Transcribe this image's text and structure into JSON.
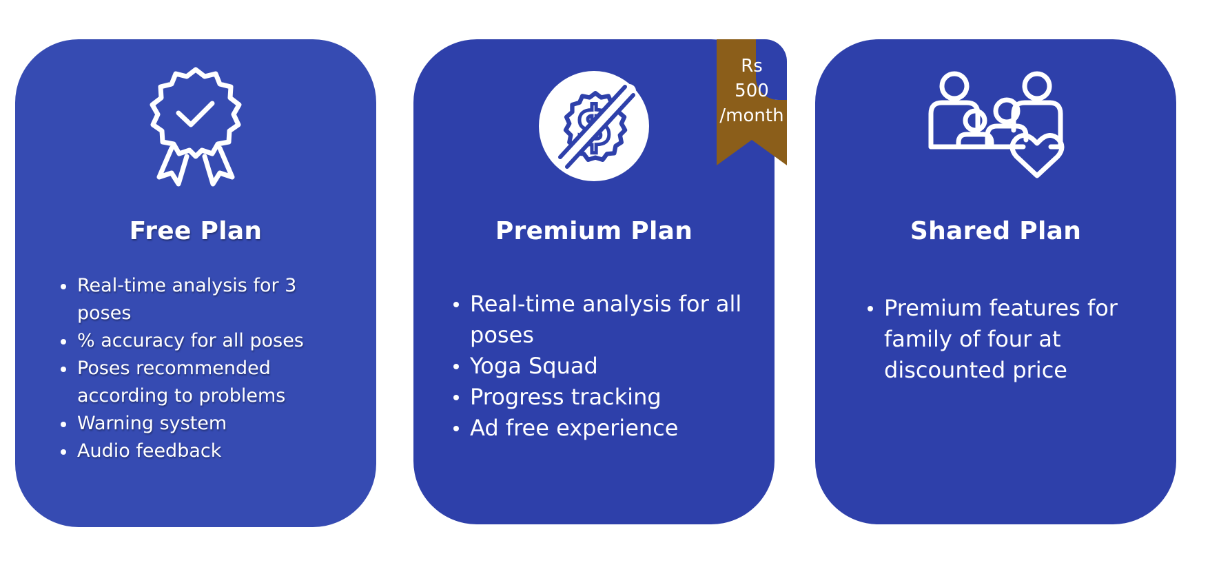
{
  "plans": {
    "free": {
      "title": "Free Plan",
      "icon": "award-badge-check-icon",
      "features": [
        "Real-time analysis for 3 poses",
        " % accuracy for all poses",
        "Poses recommended according to problems",
        "Warning system",
        " Audio feedback"
      ]
    },
    "premium": {
      "title": "Premium Plan",
      "icon": "no-dollar-icon",
      "price": {
        "currency": "Rs",
        "amount": "500",
        "period": "/month"
      },
      "features": [
        "Real-time analysis for all poses",
        "Yoga Squad",
        "Progress tracking",
        "Ad free experience"
      ]
    },
    "shared": {
      "title": "Shared Plan",
      "icon": "family-heart-icon",
      "features": [
        "Premium features for family of four at discounted price"
      ]
    }
  },
  "colors": {
    "free_card": "#364bb2",
    "card": "#2e40aa",
    "ribbon": "#8b5e1a",
    "text": "#ffffff"
  }
}
